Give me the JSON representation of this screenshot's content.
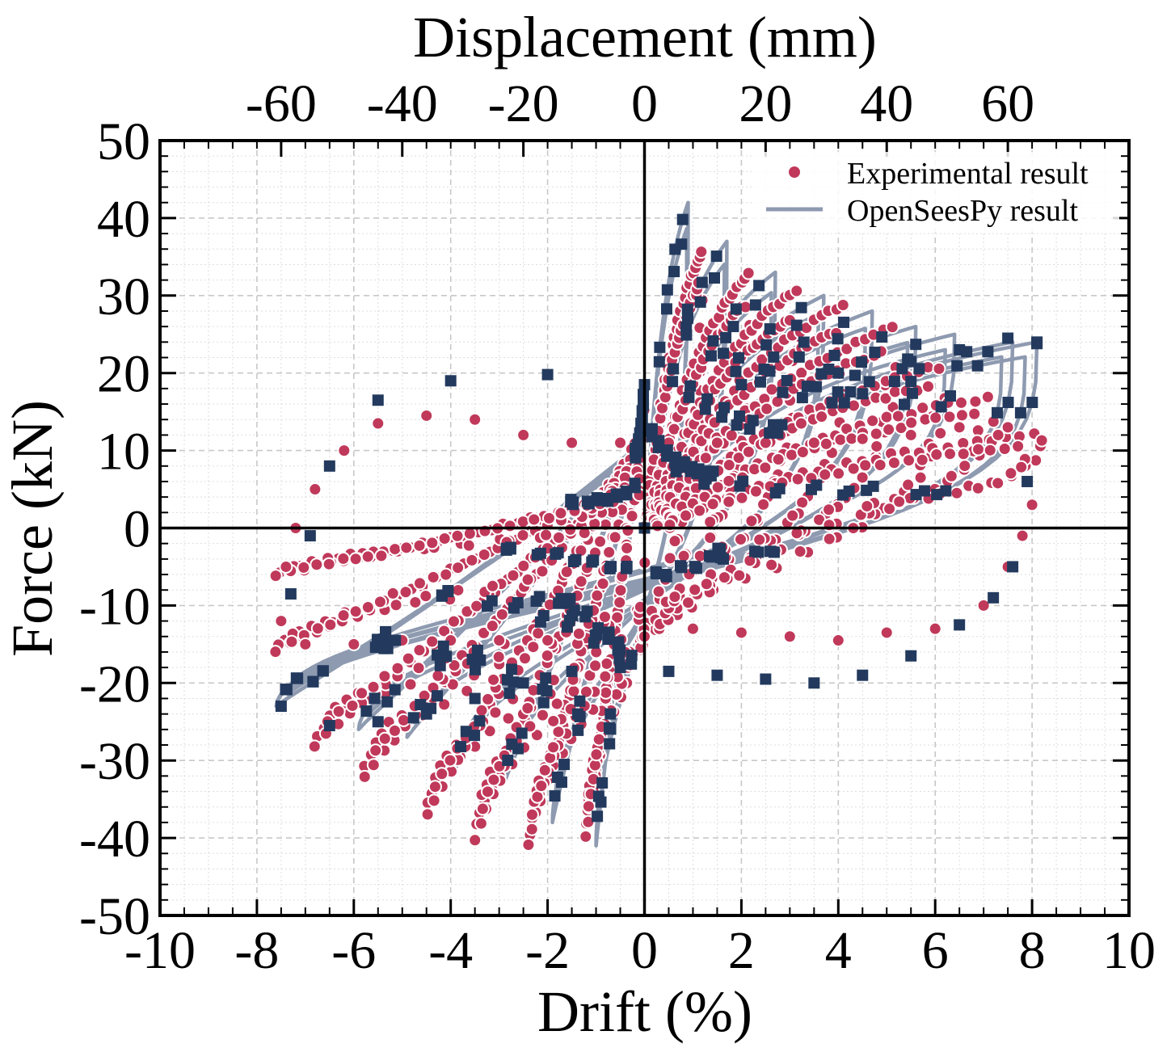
{
  "chart_data": {
    "type": "scatter",
    "title": "",
    "xlabel": "Drift (%)",
    "ylabel": "Force (kN)",
    "x2label": "Displacement (mm)",
    "xlim": [
      -10,
      10
    ],
    "ylim": [
      -50,
      50
    ],
    "x2lim": [
      -80,
      80
    ],
    "xticks": [
      "-10",
      "-8",
      "-6",
      "-4",
      "-2",
      "0",
      "2",
      "4",
      "6",
      "8",
      "10"
    ],
    "yticks": [
      "-50",
      "-40",
      "-30",
      "-20",
      "-10",
      "0",
      "10",
      "20",
      "30",
      "40",
      "50"
    ],
    "x2ticks": [
      "-60",
      "-40",
      "-20",
      "0",
      "20",
      "40",
      "60"
    ],
    "grid": true,
    "legend_position": "top-right",
    "colors": {
      "experimental": "#c0395a",
      "opensees_line": "#8e9ab0",
      "opensees_marker": "#233a5e",
      "axes": "#000000"
    },
    "series": [
      {
        "name": "Experimental result",
        "style": "dots",
        "amplitudes": [
          1.2,
          2.2,
          3.2,
          4.2,
          5.2,
          6.2,
          7.2,
          8.2
        ],
        "neg_amplitudes": [
          -1.2,
          -2.4,
          -3.5,
          -4.5,
          -5.8,
          -6.8,
          -7.6
        ],
        "pos_peak_force": [
          36,
          33,
          31,
          29,
          26,
          21,
          17,
          12
        ],
        "neg_peak_force": [
          -40,
          -41,
          -40,
          -37,
          -32,
          -28,
          -16,
          -6
        ],
        "points": [
          [
            8.2,
            11.3
          ],
          [
            8.0,
            3.0
          ],
          [
            7.8,
            -1.0
          ],
          [
            7.5,
            -5.0
          ],
          [
            7.0,
            -10.0
          ],
          [
            6.0,
            -13.0
          ],
          [
            5.0,
            -13.5
          ],
          [
            4.0,
            -14.5
          ],
          [
            3.0,
            -14.0
          ],
          [
            2.0,
            -13.5
          ],
          [
            1.0,
            -13.0
          ],
          [
            0.0,
            -14.0
          ],
          [
            -1.0,
            -14.5
          ],
          [
            -2.0,
            -14.5
          ],
          [
            -3.0,
            -14.5
          ],
          [
            -4.0,
            -14.5
          ],
          [
            -5.0,
            -14.5
          ],
          [
            -6.0,
            -15.0
          ],
          [
            -7.0,
            -15.0
          ],
          [
            -7.5,
            -12.0
          ],
          [
            -7.4,
            -5.0
          ],
          [
            -7.2,
            0.0
          ],
          [
            -6.8,
            5.0
          ],
          [
            -6.2,
            10.0
          ],
          [
            -5.5,
            13.5
          ],
          [
            -4.5,
            14.5
          ],
          [
            -3.5,
            14.0
          ],
          [
            -2.5,
            12.0
          ],
          [
            -1.5,
            11.0
          ],
          [
            -0.5,
            11.0
          ],
          [
            0.5,
            11.0
          ],
          [
            1.5,
            11.0
          ],
          [
            2.5,
            11.0
          ],
          [
            3.5,
            11.0
          ],
          [
            4.5,
            11.5
          ],
          [
            5.5,
            12.0
          ],
          [
            6.5,
            13.0
          ],
          [
            7.5,
            13.0
          ],
          [
            7.3,
            12.0
          ]
        ]
      },
      {
        "name": "OpenSeesPy result",
        "style": "line+square",
        "amplitudes": [
          0.9,
          1.7,
          2.7,
          3.7,
          4.7,
          5.6,
          6.4,
          7.6,
          8.1
        ],
        "neg_amplitudes": [
          -1.0,
          -1.9,
          -2.9,
          -3.9,
          -4.9,
          -5.9,
          -7.6
        ],
        "pos_peak_force": [
          42,
          37,
          33,
          30,
          28,
          26,
          25,
          24,
          24
        ],
        "neg_peak_force": [
          -41,
          -38,
          -33,
          -31,
          -27,
          -26,
          -23
        ],
        "points": [
          [
            8.1,
            23.8
          ],
          [
            7.9,
            6.0
          ],
          [
            7.6,
            -5.0
          ],
          [
            7.2,
            -9.0
          ],
          [
            6.5,
            -12.5
          ],
          [
            5.5,
            -16.5
          ],
          [
            4.5,
            -19.0
          ],
          [
            3.5,
            -20.0
          ],
          [
            2.5,
            -19.5
          ],
          [
            1.5,
            -19.0
          ],
          [
            0.5,
            -18.5
          ],
          [
            -0.5,
            -18.0
          ],
          [
            -1.5,
            -18.5
          ],
          [
            -2.5,
            -20.0
          ],
          [
            -3.5,
            -22.0
          ],
          [
            -4.5,
            -24.0
          ],
          [
            -5.5,
            -25.0
          ],
          [
            -6.5,
            -25.5
          ],
          [
            -7.5,
            -23.0
          ],
          [
            -7.3,
            -8.5
          ],
          [
            -6.9,
            -1.0
          ],
          [
            -6.5,
            8.0
          ],
          [
            -5.5,
            16.5
          ],
          [
            -4.0,
            19.0
          ],
          [
            -2.0,
            19.8
          ],
          [
            0.0,
            18.5
          ],
          [
            2.0,
            18.5
          ],
          [
            4.0,
            20.0
          ],
          [
            5.5,
            21.5
          ],
          [
            6.5,
            23.0
          ],
          [
            7.5,
            24.5
          ],
          [
            8.1,
            24.0
          ]
        ]
      }
    ]
  }
}
